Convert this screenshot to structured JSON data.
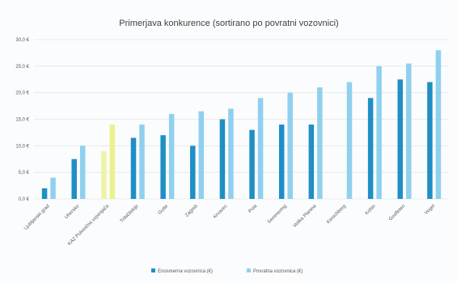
{
  "chart_data": {
    "type": "bar",
    "title": "Primerjava konkurence (sortirano po povratni vozovnici)",
    "categories": [
      "Ljubljanski grad",
      "Uhersko",
      "KAZ Pokončna vzpenjača",
      "Tribičilskije",
      "Gutte",
      "Zagreb",
      "Krvavec",
      "Pula",
      "Semmering",
      "Velika Planina",
      "Kerschberg",
      "Kobin",
      "Gosfleten",
      "Vogel"
    ],
    "series": [
      {
        "name": "Enosmerna vozovnica (€)",
        "color": "#1f8fc5",
        "values": [
          2,
          7.5,
          9,
          11.5,
          12,
          10,
          15,
          13,
          14,
          14,
          null,
          19,
          22.5,
          22
        ]
      },
      {
        "name": "Povratna vozovnica (€)",
        "color": "#8fd0ee",
        "values": [
          4,
          10,
          14,
          14,
          16,
          16.5,
          17,
          19,
          20,
          21,
          22,
          25,
          25.5,
          28
        ]
      }
    ],
    "highlight": {
      "category_index": 2,
      "colors": [
        "#eef3a8",
        "#eaf28a"
      ]
    },
    "ylim": [
      0,
      30
    ],
    "yticks": [
      "0,0 €",
      "5,0 €",
      "10,0 €",
      "15,0 €",
      "20,0 €",
      "25,0 €",
      "30,0 €"
    ],
    "grid": true,
    "legend_position": "bottom"
  }
}
